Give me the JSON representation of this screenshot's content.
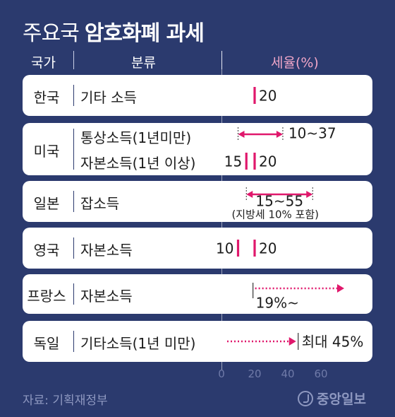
{
  "title": {
    "light": "주요국",
    "bold": "암호화폐 과세"
  },
  "headers": {
    "country": "국가",
    "category": "분류",
    "rate": "세율(%)"
  },
  "source": "자료: 기획재정부",
  "logo": "중앙일보",
  "colors": {
    "background": "#2b3a6e",
    "accent": "#e0186c",
    "row": "#ffffff"
  },
  "chart_data": {
    "type": "range",
    "xlim": [
      0,
      70
    ],
    "ticks": [
      0,
      20,
      40,
      60
    ],
    "rows": [
      {
        "country": "한국",
        "items": [
          {
            "category": "기타 소득",
            "kind": "point",
            "value": 20,
            "label": "20"
          }
        ]
      },
      {
        "country": "미국",
        "items": [
          {
            "category": "통상소득(1년미만)",
            "kind": "range",
            "min": 10,
            "max": 37,
            "label": "10~37"
          },
          {
            "category": "자본소득(1년 이상)",
            "kind": "points",
            "values": [
              15,
              20
            ],
            "labels": [
              "15",
              "20"
            ]
          }
        ]
      },
      {
        "country": "일본",
        "items": [
          {
            "category": "잡소득",
            "kind": "range",
            "min": 15,
            "max": 55,
            "label": "15~55",
            "note": "(지방세 10% 포함)"
          }
        ]
      },
      {
        "country": "영국",
        "items": [
          {
            "category": "자본소득",
            "kind": "points",
            "values": [
              10,
              20
            ],
            "labels": [
              "10",
              "20"
            ]
          }
        ]
      },
      {
        "country": "프랑스",
        "items": [
          {
            "category": "자본소득",
            "kind": "open-min",
            "min": 19,
            "label": "19%~"
          }
        ]
      },
      {
        "country": "독일",
        "items": [
          {
            "category": "기타소득(1년 미만)",
            "kind": "open-max",
            "max": 45,
            "label": "최대 45%"
          }
        ]
      }
    ]
  }
}
